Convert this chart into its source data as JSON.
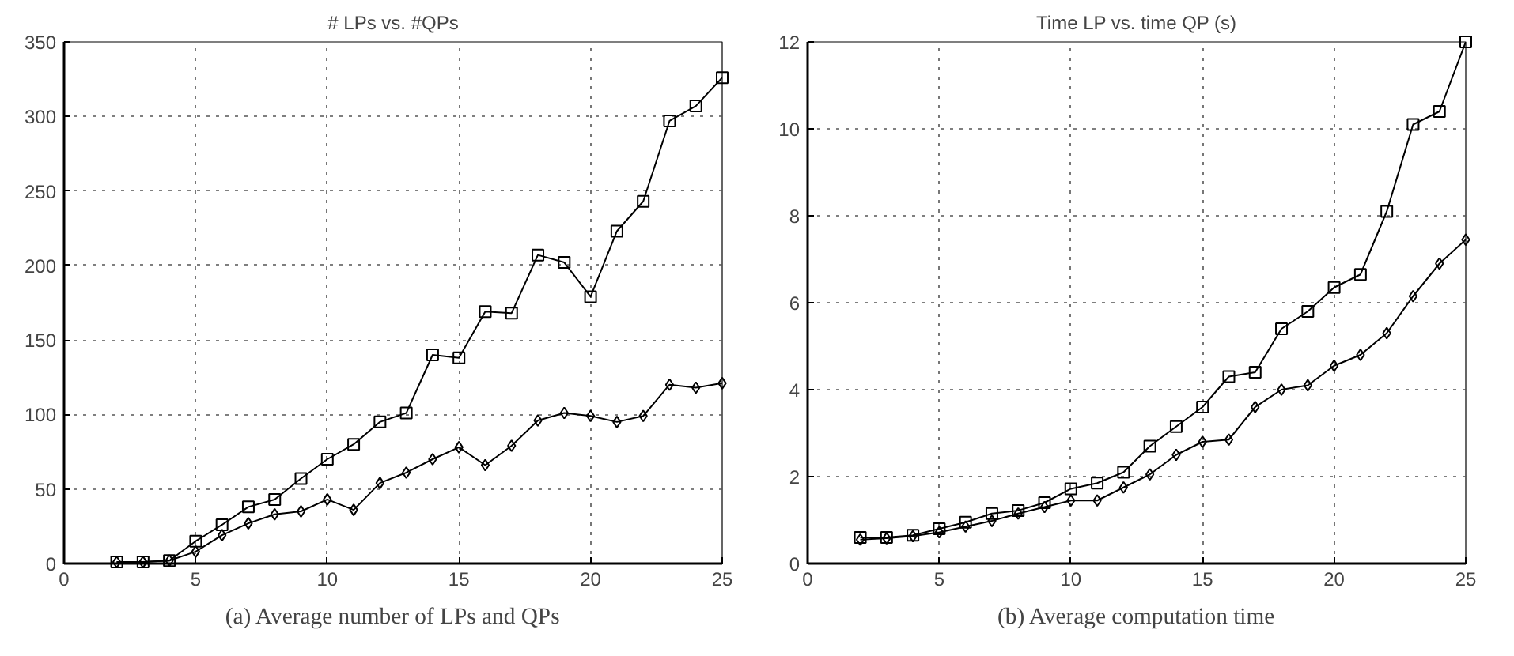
{
  "chart_data": [
    {
      "type": "line",
      "title": "# LPs vs. #QPs",
      "x": [
        2,
        3,
        4,
        5,
        6,
        7,
        8,
        9,
        10,
        11,
        12,
        13,
        14,
        15,
        16,
        17,
        18,
        19,
        20,
        21,
        22,
        23,
        24,
        25
      ],
      "series": [
        {
          "color": "#000000",
          "marker": "square",
          "values": [
            1,
            1,
            2,
            15,
            26,
            38,
            43,
            57,
            70,
            80,
            95,
            101,
            140,
            138,
            169,
            168,
            207,
            202,
            179,
            223,
            243,
            297,
            307,
            326
          ]
        },
        {
          "color": "#000000",
          "marker": "diamond",
          "values": [
            1,
            1,
            2,
            8,
            19,
            27,
            33,
            35,
            43,
            36,
            54,
            61,
            70,
            78,
            66,
            79,
            96,
            101,
            99,
            95,
            99,
            120,
            118,
            121
          ]
        }
      ],
      "xlim": [
        0,
        25
      ],
      "xticks": [
        0,
        5,
        10,
        15,
        20,
        25
      ],
      "ylim": [
        0,
        350
      ],
      "yticks": [
        0,
        50,
        100,
        150,
        200,
        250,
        300,
        350
      ],
      "grid": true,
      "line_style": "solid",
      "annotations": [
        "(a) Average number of LPs and QPs"
      ]
    },
    {
      "type": "line",
      "title": "Time LP vs. time QP (s)",
      "x": [
        2,
        3,
        4,
        5,
        6,
        7,
        8,
        9,
        10,
        11,
        12,
        13,
        14,
        15,
        16,
        17,
        18,
        19,
        20,
        21,
        22,
        23,
        24,
        25
      ],
      "series": [
        {
          "color": "#000000",
          "marker": "square",
          "values": [
            0.6,
            0.6,
            0.65,
            0.8,
            0.95,
            1.15,
            1.22,
            1.4,
            1.72,
            1.85,
            2.1,
            2.7,
            3.15,
            3.6,
            4.3,
            4.4,
            5.4,
            5.8,
            6.35,
            6.65,
            8.1,
            10.1,
            10.4,
            12
          ]
        },
        {
          "color": "#000000",
          "marker": "diamond",
          "values": [
            0.55,
            0.58,
            0.63,
            0.72,
            0.85,
            0.98,
            1.15,
            1.3,
            1.45,
            1.45,
            1.75,
            2.05,
            2.5,
            2.8,
            2.85,
            3.6,
            4.0,
            4.1,
            4.55,
            4.8,
            5.3,
            6.15,
            6.9,
            7.45
          ]
        }
      ],
      "xlim": [
        0,
        25
      ],
      "xticks": [
        0,
        5,
        10,
        15,
        20,
        25
      ],
      "ylim": [
        0,
        12
      ],
      "yticks": [
        0,
        2,
        4,
        6,
        8,
        10,
        12
      ],
      "grid": true,
      "line_style": "solid",
      "annotations": [
        "(b) Average computation time"
      ]
    }
  ]
}
